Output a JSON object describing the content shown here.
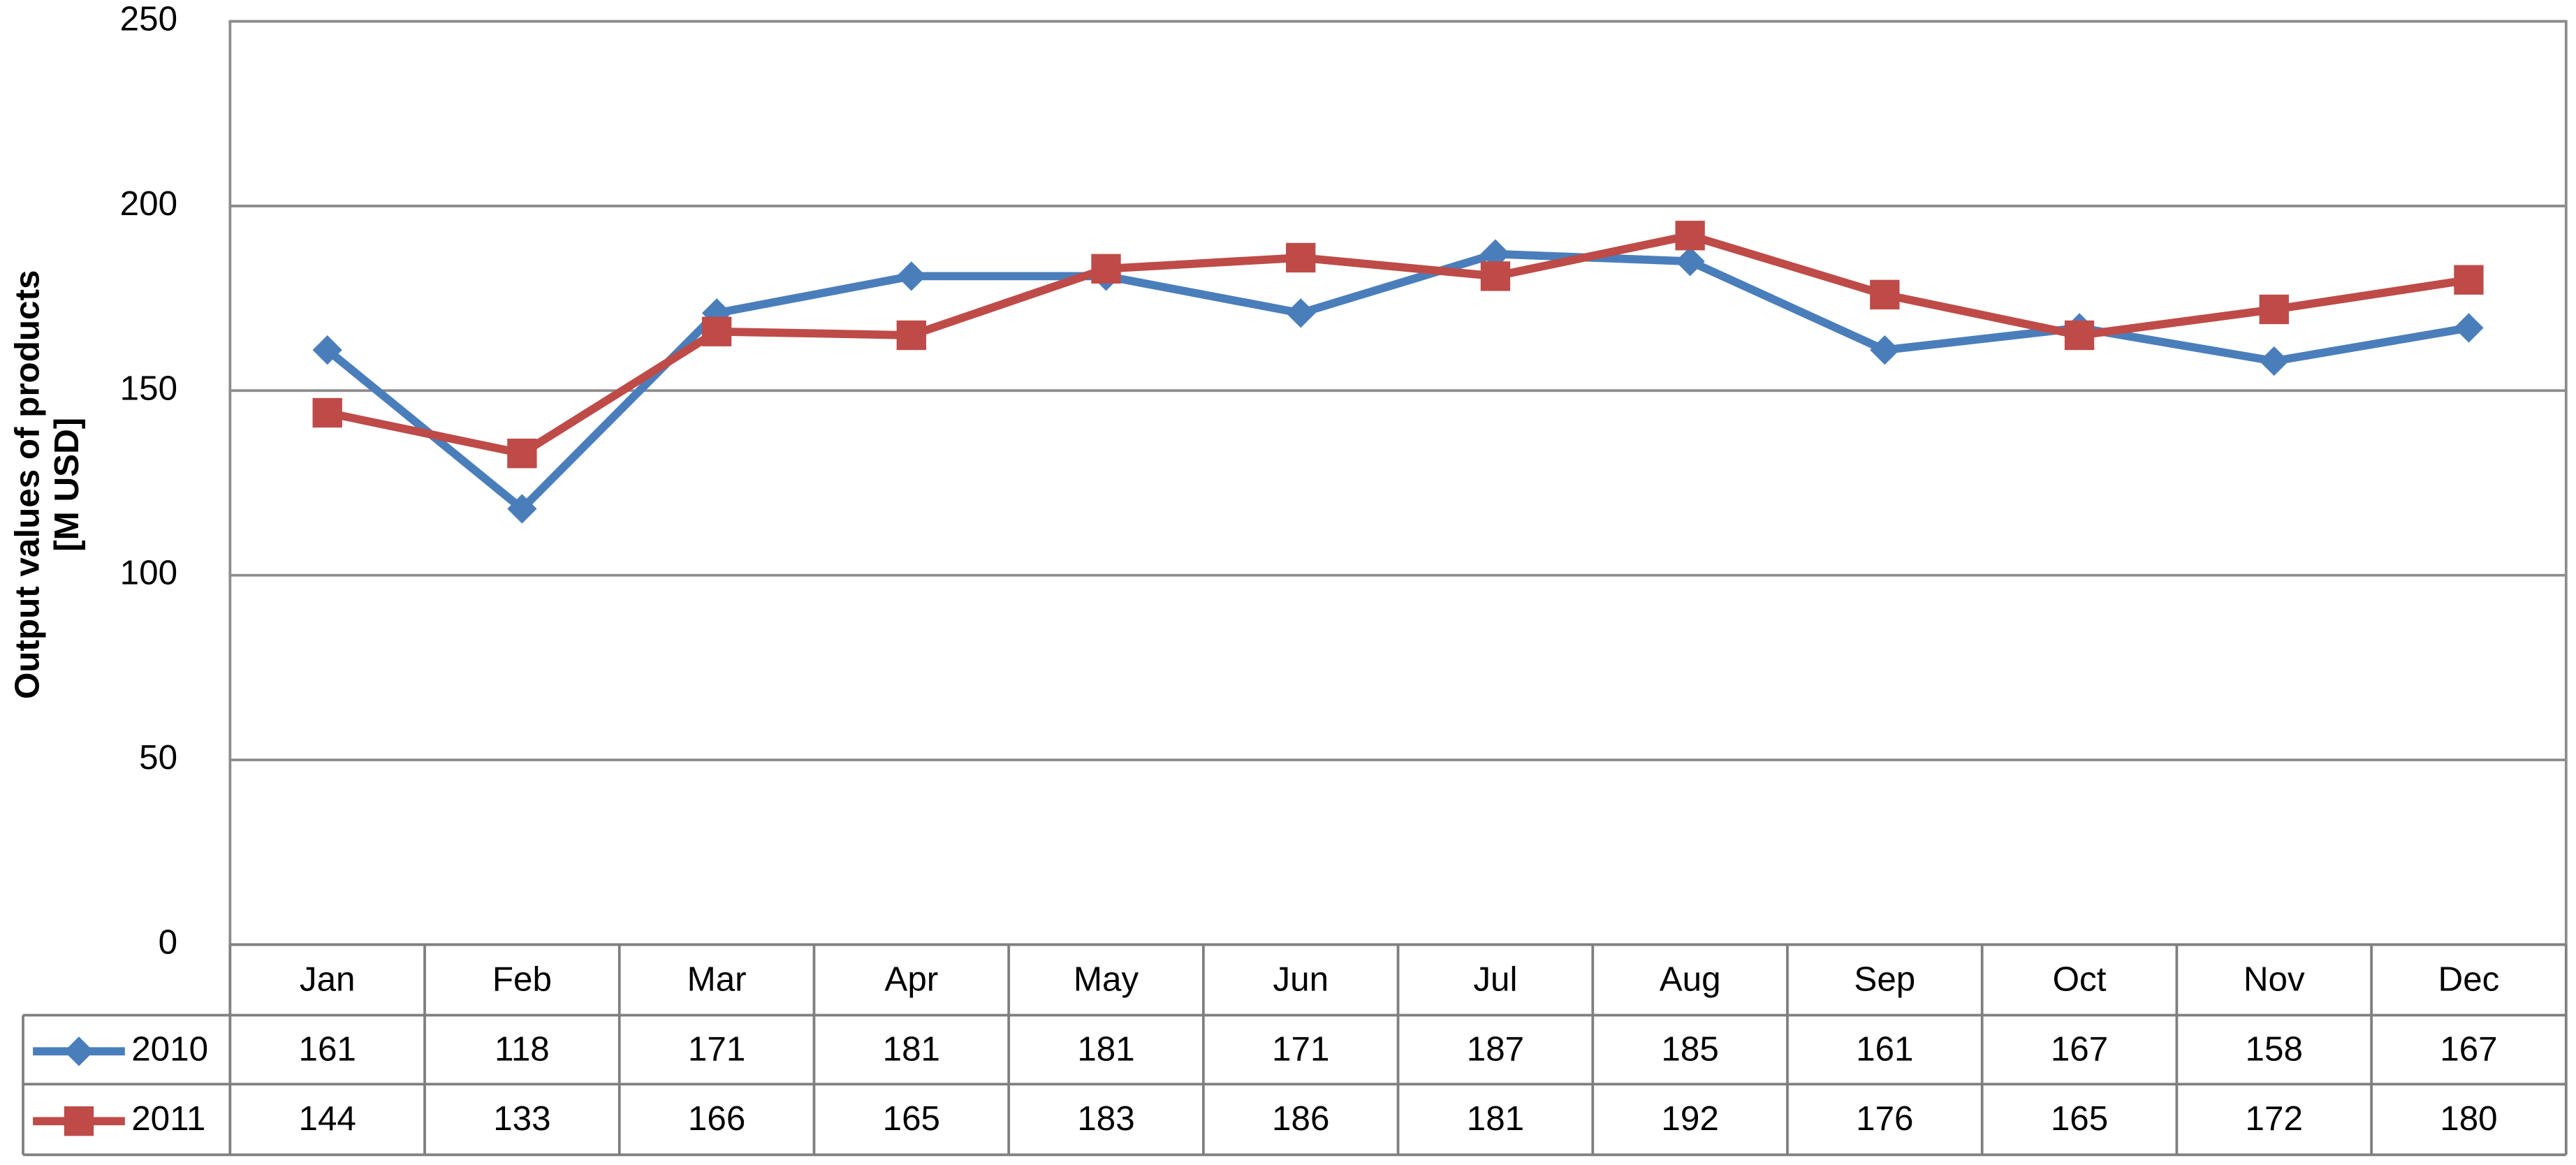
{
  "chart_data": {
    "type": "line",
    "y_label": [
      "Output values of products",
      "[M USD]"
    ],
    "categories": [
      "Jan",
      "Feb",
      "Mar",
      "Apr",
      "May",
      "Jun",
      "Jul",
      "Aug",
      "Sep",
      "Oct",
      "Nov",
      "Dec"
    ],
    "series": [
      {
        "name": "2010",
        "color": "#4a7ebb",
        "marker": "diamond",
        "values": [
          161,
          118,
          171,
          181,
          181,
          171,
          187,
          185,
          161,
          167,
          158,
          167
        ]
      },
      {
        "name": "2011",
        "color": "#be4b48",
        "marker": "square",
        "values": [
          144,
          133,
          166,
          165,
          183,
          186,
          181,
          192,
          176,
          165,
          172,
          180
        ]
      }
    ],
    "ylim": [
      0,
      250
    ],
    "yticks": [
      0,
      50,
      100,
      150,
      200,
      250
    ],
    "grid": true
  }
}
